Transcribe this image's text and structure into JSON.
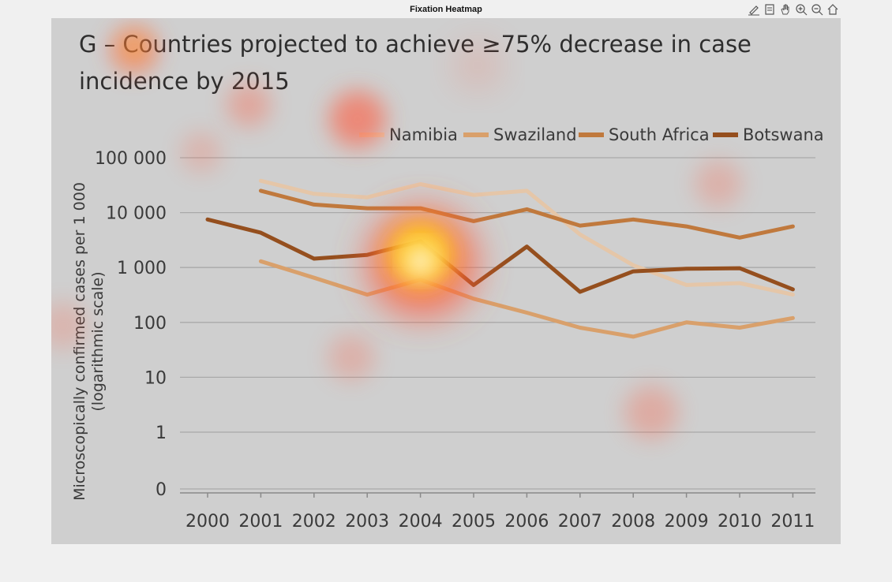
{
  "window": {
    "title": "Fixation Heatmap"
  },
  "toolbar": {
    "tools": [
      {
        "name": "brush-tool-icon"
      },
      {
        "name": "data-tips-icon"
      },
      {
        "name": "pan-hand-icon"
      },
      {
        "name": "zoom-in-icon"
      },
      {
        "name": "zoom-out-icon"
      },
      {
        "name": "home-icon"
      }
    ]
  },
  "chart_data": {
    "type": "line",
    "title_line1": "G – Countries projected to achieve ≥75% decrease in case",
    "title_line2": "incidence by 2015",
    "ylabel_line1": "Microscopically confirmed cases per 1 000",
    "ylabel_line2": "(logarithmic scale)",
    "yscale": "log",
    "yticks": [
      0,
      1,
      10,
      100,
      1000,
      10000,
      100000
    ],
    "ytick_labels": [
      "0",
      "1",
      "10",
      "100",
      "1 000",
      "10 000",
      "100 000"
    ],
    "x": [
      "2000",
      "2001",
      "2002",
      "2003",
      "2004",
      "2005",
      "2006",
      "2007",
      "2008",
      "2009",
      "2010",
      "2011"
    ],
    "legend_position": "top-right",
    "grid": true,
    "series": [
      {
        "name": "Namibia",
        "color": "#e5c6a8",
        "values": [
          null,
          38000,
          22000,
          19000,
          33000,
          21000,
          25000,
          4000,
          1100,
          480,
          520,
          320
        ]
      },
      {
        "name": "Swaziland",
        "color": "#d9a06b",
        "values": [
          null,
          1300,
          650,
          320,
          600,
          270,
          150,
          80,
          55,
          100,
          80,
          120
        ]
      },
      {
        "name": "South Africa",
        "color": "#c0793d",
        "values": [
          null,
          25000,
          14000,
          12000,
          12000,
          7000,
          11500,
          5800,
          7500,
          5600,
          3500,
          5600
        ]
      },
      {
        "name": "Botswana",
        "color": "#954f1e",
        "values": [
          7500,
          4300,
          1450,
          1700,
          3000,
          480,
          2400,
          360,
          850,
          950,
          970,
          400
        ]
      }
    ],
    "heatmap_intensity": {
      "colors": [
        "#ff5a3c",
        "#ffd21e",
        "#ffffff"
      ]
    }
  }
}
